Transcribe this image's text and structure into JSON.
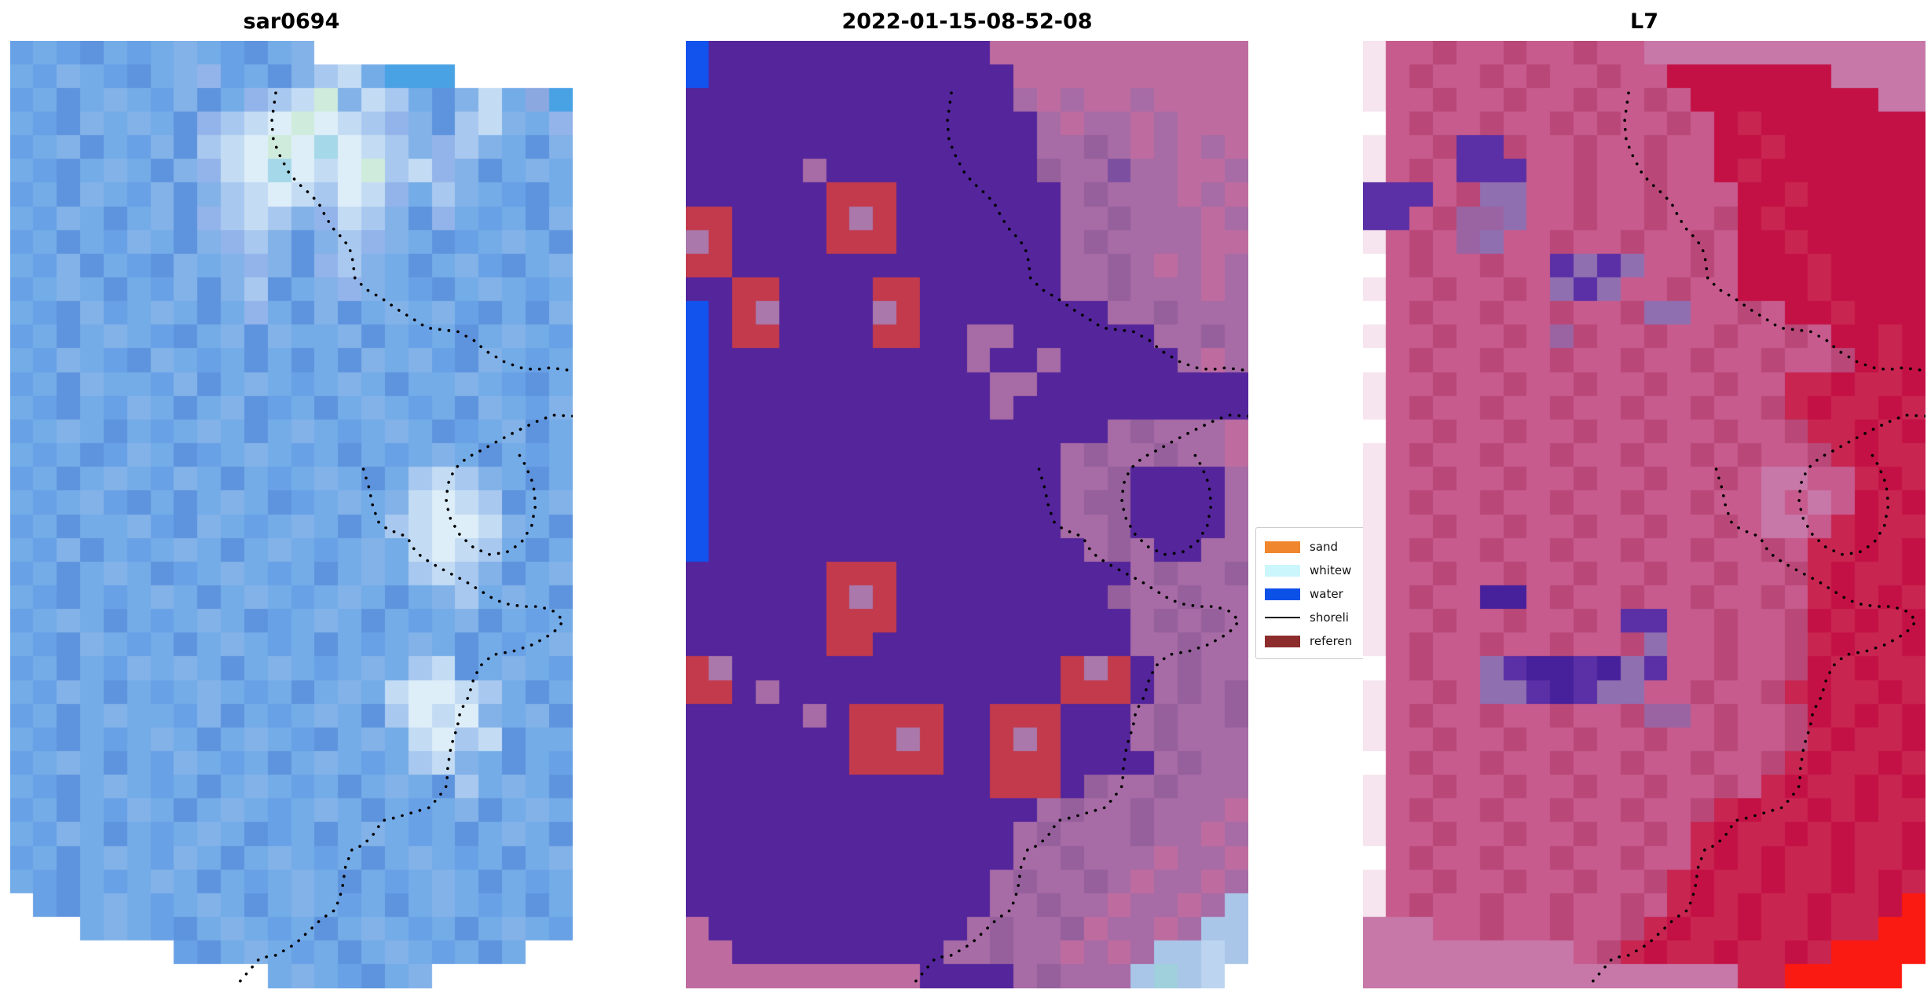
{
  "figure": {
    "background": "#ffffff"
  },
  "chart_data": {
    "type": "heatmap",
    "note": "three-panel coastal satellite image comparison; per-panel pixel grids are in panels[].rows with palette lookup",
    "panel_titles": [
      "sar0694",
      "2022-01-15-08-52-08",
      "L7"
    ],
    "legend_entries": [
      "sand",
      "whitew",
      "water",
      "shoreli",
      "referen"
    ],
    "overlay": "dotted black shoreline on each panel"
  },
  "panels": [
    {
      "title": "sar0694",
      "palette": {
        "a": "#69A1E6",
        "b": "#74ACE8",
        "c": "#5E94DE",
        "d": "#82B2E8",
        "e": "#93B4EA",
        "f": "#A9C8EF",
        "g": "#C3DCF4",
        "h": "#DEEEF8",
        "i": "#64AEDC",
        "j": "#49A2E4",
        "k": "#CFEBDC",
        "l": "#E4CEE4",
        "m": "#BFD0F0",
        "n": "#A5D8E8",
        "o": "#8CA8E0",
        ".": "#FFFFFF"
      },
      "rows": [
        "abacbabdbacbd...........",
        "badbacbdeabcdfgbjjj.....",
        "abcbdbadcbefgkdgfbcdgboj",
        "bacdbdbcefghkhgfedcfgdbe",
        "abdcbadcfghkhnhgfdefdbcd",
        "bacbdbcdeghnhghkfgedcbdb",
        "abcdbadcdfghgfhgebfdbacb",
        "badbcbdcefgfdegfdcebabcd",
        "abcbadbcdefdcdfedbcabdbc",
        "badcbacdbdedcefdbcbdacbd",
        "abdbcbadcdfcbdedbacbdbab",
        "bacdabdbcbebcdcbdbdacbcd",
        "abcbdbacbdcdbbdcbabcbdba",
        "badbacdbabcbcbcdbdacdbab",
        "abcdbbadcbdbabdbcbbdbacb",
        "bacbadbcbdcabcbdbabcdbad",
        "abdbcbabdbcbdbabdbcabdcb",
        "babcadbcabdbabcbabdbcbab",
        "abcbdbadbcbabdbcbfgfdbcb",
        "babdacbcbdbcabdbdghgfcbd",
        "abcbbdacdbabdbcbfghhgdbc",
        "badcbabdbcbdbabdbghgfbcb",
        "abcbdbcabdbabcbdbfgfdcbd",
        "bacbabdbcbdbabdbcbdfbdbc",
        "abdbcbabdbcabdbcbabdcbab",
        "bacdbabcbdbabcbabdbcbabd",
        "abcbadbdbcbdbabdbfgcbdba",
        "badbcbabdbabcbdbghhgfbcb",
        "abcbdbbadcbabdbcfhghdbdc",
        "bacbabdbcbdbacbdbghfgcbb",
        "abdbcbadbabcbdbabfgdbcba",
        "bacbdbabcbdbabcbdbcfbdbc",
        "abcbadbcbdbabdbcbabdcbdb",
        "badbcbabdbcabcbdbabcbdbc",
        "abcbdbadbcbdbabcbdbabcbd",
        "bacbabdbcbabdbcbabdbcbab",
        ".acbdbabdbcbdbabcbdbabcb",
        "...bdbacbdbabcbdbabcbdba",
        ".......acbdbabcbdbabcb..",
        "...........bdbacbd......"
      ]
    },
    {
      "title": "2022-01-15-08-52-08",
      "palette": {
        "A": "#54259B",
        "B": "#5F2FA3",
        "C": "#BE6CA0",
        "D": "#A76BA5",
        "E": "#96609C",
        "F": "#7C4FA0",
        "G": "#C23A4C",
        "H": "#AA78AA",
        "I": "#1253EE",
        "J": "#A9C6E8",
        "K": "#9FD0DC",
        "L": "#BCD4F0",
        ".": "#FFFFFF"
      },
      "rows": [
        "IAAAAAAAAAAAACCCCCCCCCCC",
        "IAAAAAAAAAAAAACCCCCCCCCC",
        "AAAAAAAAAAAAAADCDCCDCCCC",
        "AAAAAAAAAAAAAAADCDDCDCCC",
        "AAAAAAAAAAAAAAADDEDCDCDC",
        "AAAAADAAAAAAAAAEDDFDDCCD",
        "AAAAAAGGGAAAAAAADEDDDCDC",
        "GGAAAAGHGAAAAAAADDEDDDCD",
        "HGAAAAGGGAAAAAAADEDDDDCC",
        "GGAAAAAAAAAAAAAADDEDCDCD",
        "AAGGAAAAGGAAAAAADDEDDDCD",
        "IAGHAAAAHGAAAAAAAADDEDDD",
        "IAGGAAAAGGAADDAAAAAADDED",
        "IAAAAAAAAAAADAADAAAAADCD",
        "IAAAAAAAAAAAADDAAAAAAAAA",
        "IAAAAAAAAAAAADAAAAAAAAAA",
        "IAAAAAAAAAAAAAAAAADEDDDC",
        "IAAAAAAAAAAAAAAADEDDEDDC",
        "IAAAAAAAAAAAAAAADDEAAAAD",
        "IAAAAAAAAAAAAAAADEEAAAAD",
        "IAAAAAAAAAAAAAAADDEAAAAD",
        "IAAAAAAAAAAAAAAAADEDAADD",
        "AAAAAAGGGAAAAAAAAAADEDDE",
        "AAAAAAGHGAAAAAAAAAEDDEDD",
        "AAAAAAGGGAAAAAAAAAADEDED",
        "AAAAAAGGAAAAAAAAAAADDEDD",
        "GHAAAAAAAAAAAAAAGHGADEDD",
        "GGADAAAAAAAAAAAAGGGADEDE",
        "AAAAADAGGGGAAGGGAAADEDDE",
        "AAAAAAAGGHGAAGHGAAADEDDD",
        "AAAAAAAGGGGAAGGGAAAADEDD",
        "AAAAAAAAAAAAAGGGAEDDEDDD",
        "AAAAAAAAAAAAAAADEDDEDDDC",
        "AAAAAAAAAAAAAADEDDDEDDCD",
        "AAAAAAAAAAAAAADDEDDDCDDC",
        "AAAAAAAAAAAAADEDDEDCDDCD",
        "AAAAAAAAAAAAADDEDDCDDCDJ",
        "CAAAAAAAAAAADEDDECDDCDJJ",
        "CCAAAAAAAAADDEDDCDCDJJLJ",
        "CCCCCCCCCCAAAADEDDDJKJL."
      ]
    },
    {
      "title": "L7",
      "palette": {
        "P": "#C41145",
        "Q": "#C82551",
        "R": "#C75B8D",
        "S": "#B94878",
        "T": "#C778A8",
        "U": "#9A64A2",
        "V": "#8F6FB0",
        "W": "#5B2FA5",
        "X": "#47209B",
        "Y": "#FB1A12",
        "Z": "#F6E4EE",
        ".": "#FFFFFF"
      },
      "rows": [
        "ZRRSRRSRRSRRTTTTTTTTTTTT",
        "ZRSRRSRSRRSRRPPPPPPPTTTT",
        "ZRRSRRSRRSRRSRPPPPPPPPTT",
        ".RSRRSRRSRSRRSRPQPPPPPPP",
        "ZRRSWWSRRSRRSRRPPQPPPPPP",
        "ZRSRWWWRRSRRSRRPQPPPPPPP",
        "WWWRSVVRRSRRSRRRPPQPPPPP",
        "WWRSUUVRRSRRSRRSPQPPPPPP",
        "ZRSRUVRRSRRSRRSRPPQPPPPP",
        ".RSRRSRRWVWVRRSRPPPQPPPP",
        "ZRRSRRSRVWVRRSRRPPPQPPPP",
        ".RSRRSRRSRRSVVRRSRPPQPPP",
        "ZRRSRRSRUSRRSRRSRRSRPPQP",
        ".RSRRSRRSRRSRRSRRSRRSPQP",
        "ZRRSRRSRRSRRSRRSRRQQPQQP",
        "ZRSRRSRRSRRSRRSRRSQPQQPQ",
        ".RRSRRSRRSRRSRRSRRSQQPQP",
        "ZRSRRSRRSRRSRRSRSRRSQPQQ",
        "ZRRSRRSRRSRRSRRSRTTRRQPQ",
        "ZRSRRSRRSRRSRRSRRTRTRPQP",
        "ZRRSRRSRRSRRSRRSRTTRQPQQ",
        "ZRSRRSRRSRRSRRSRRSRQQPQP",
        "ZRRSRRSRRSRRSRRSRRSQPQQP",
        "ZRSRRXXRSRRSRRSRRSRQPQPQ",
        "ZRRSRRSRRSRWWRRSRRSPQPQP",
        "ZRSRRSRRSRRSVRRSRRSQPQQP",
        ".RSRRVWXXWXVWRRSRRSPQPQQ",
        "ZRRSRVVWXWVVRRSRRSQPQQPQ",
        "ZRSRRSRRSRRSUURSRRSPQPQP",
        "ZRRSRRSRRSRRSRRSRRSQPQQP",
        ".RSRRSRRSRRSRRSRRSQPQQPQ",
        "ZRRSRRSRRSRRSRRSRQPQQPQP",
        "ZRSRRSRRSRRSRRSQPQQPQPQQ",
        "ZRRSRRSRRSRRSRQPQQPQPQQP",
        ".RSRRSRRSRRSRRQPQPQQPQQP",
        "ZRRSRRSRRSRRSQPQQPQQPQPQ",
        "ZRSRRSRRSRRSRQPQPQQPQQPY",
        "TTTRRSRRSRRSQPQQPQQPQQYY",
        "TTTTTTTTTRSQPQQPQQPQYYYY",
        "TTTTTTTTTTTTTTTTQQYYYYY."
      ]
    }
  ],
  "shoreline": {
    "color": "#000000",
    "segments": {
      "upper": [
        [
          0.472,
          0.055
        ],
        [
          0.465,
          0.085
        ],
        [
          0.468,
          0.105
        ],
        [
          0.48,
          0.122
        ],
        [
          0.497,
          0.141
        ],
        [
          0.515,
          0.152
        ],
        [
          0.53,
          0.16
        ],
        [
          0.548,
          0.171
        ],
        [
          0.561,
          0.186
        ],
        [
          0.574,
          0.198
        ],
        [
          0.59,
          0.208
        ],
        [
          0.603,
          0.218
        ],
        [
          0.609,
          0.232
        ],
        [
          0.613,
          0.251
        ],
        [
          0.635,
          0.263
        ],
        [
          0.661,
          0.272
        ],
        [
          0.69,
          0.284
        ],
        [
          0.715,
          0.293
        ],
        [
          0.741,
          0.303
        ],
        [
          0.77,
          0.305
        ],
        [
          0.796,
          0.307
        ],
        [
          0.824,
          0.316
        ],
        [
          0.845,
          0.327
        ],
        [
          0.879,
          0.339
        ],
        [
          0.908,
          0.345
        ],
        [
          0.933,
          0.347
        ],
        [
          0.96,
          0.345
        ],
        [
          0.985,
          0.347
        ],
        [
          1.0,
          0.348
        ]
      ],
      "ring": [
        [
          1.0,
          0.396
        ],
        [
          0.965,
          0.395
        ],
        [
          0.935,
          0.402
        ],
        [
          0.9,
          0.412
        ],
        [
          0.868,
          0.422
        ],
        [
          0.838,
          0.432
        ],
        [
          0.812,
          0.44
        ],
        [
          0.79,
          0.452
        ],
        [
          0.778,
          0.468
        ],
        [
          0.775,
          0.487
        ],
        [
          0.783,
          0.505
        ],
        [
          0.8,
          0.522
        ],
        [
          0.824,
          0.535
        ],
        [
          0.852,
          0.542
        ],
        [
          0.882,
          0.54
        ],
        [
          0.908,
          0.53
        ],
        [
          0.927,
          0.512
        ],
        [
          0.934,
          0.49
        ],
        [
          0.93,
          0.468
        ],
        [
          0.916,
          0.448
        ],
        [
          0.9,
          0.432
        ]
      ],
      "lower": [
        [
          0.628,
          0.452
        ],
        [
          0.638,
          0.472
        ],
        [
          0.645,
          0.492
        ],
        [
          0.655,
          0.508
        ],
        [
          0.672,
          0.516
        ],
        [
          0.692,
          0.52
        ],
        [
          0.706,
          0.524
        ],
        [
          0.716,
          0.535
        ],
        [
          0.732,
          0.545
        ],
        [
          0.757,
          0.554
        ],
        [
          0.782,
          0.562
        ],
        [
          0.808,
          0.57
        ],
        [
          0.835,
          0.58
        ],
        [
          0.862,
          0.59
        ],
        [
          0.888,
          0.595
        ],
        [
          0.915,
          0.597
        ],
        [
          0.942,
          0.597
        ],
        [
          0.966,
          0.602
        ],
        [
          0.984,
          0.612
        ],
        [
          0.965,
          0.625
        ],
        [
          0.93,
          0.637
        ],
        [
          0.895,
          0.644
        ],
        [
          0.858,
          0.648
        ],
        [
          0.835,
          0.66
        ],
        [
          0.823,
          0.675
        ],
        [
          0.815,
          0.692
        ],
        [
          0.8,
          0.708
        ],
        [
          0.795,
          0.724
        ],
        [
          0.784,
          0.744
        ],
        [
          0.778,
          0.766
        ],
        [
          0.776,
          0.786
        ],
        [
          0.763,
          0.797
        ],
        [
          0.746,
          0.809
        ],
        [
          0.712,
          0.815
        ],
        [
          0.684,
          0.82
        ],
        [
          0.662,
          0.823
        ],
        [
          0.645,
          0.838
        ],
        [
          0.627,
          0.849
        ],
        [
          0.608,
          0.853
        ],
        [
          0.596,
          0.872
        ],
        [
          0.59,
          0.896
        ],
        [
          0.578,
          0.917
        ],
        [
          0.553,
          0.927
        ],
        [
          0.53,
          0.94
        ],
        [
          0.507,
          0.953
        ],
        [
          0.473,
          0.965
        ],
        [
          0.444,
          0.968
        ],
        [
          0.418,
          0.986
        ],
        [
          0.405,
          0.995
        ]
      ]
    }
  },
  "legend": {
    "entries": [
      {
        "label": "sand",
        "type": "patch",
        "color": "#F0862D"
      },
      {
        "label": "whitew",
        "type": "patch",
        "color": "#CBF6FC"
      },
      {
        "label": "water",
        "type": "patch",
        "color": "#0B51E8"
      },
      {
        "label": "shoreli",
        "type": "line",
        "color": "#000000"
      },
      {
        "label": "referen",
        "type": "patch",
        "color": "#8D2C2C"
      }
    ]
  }
}
